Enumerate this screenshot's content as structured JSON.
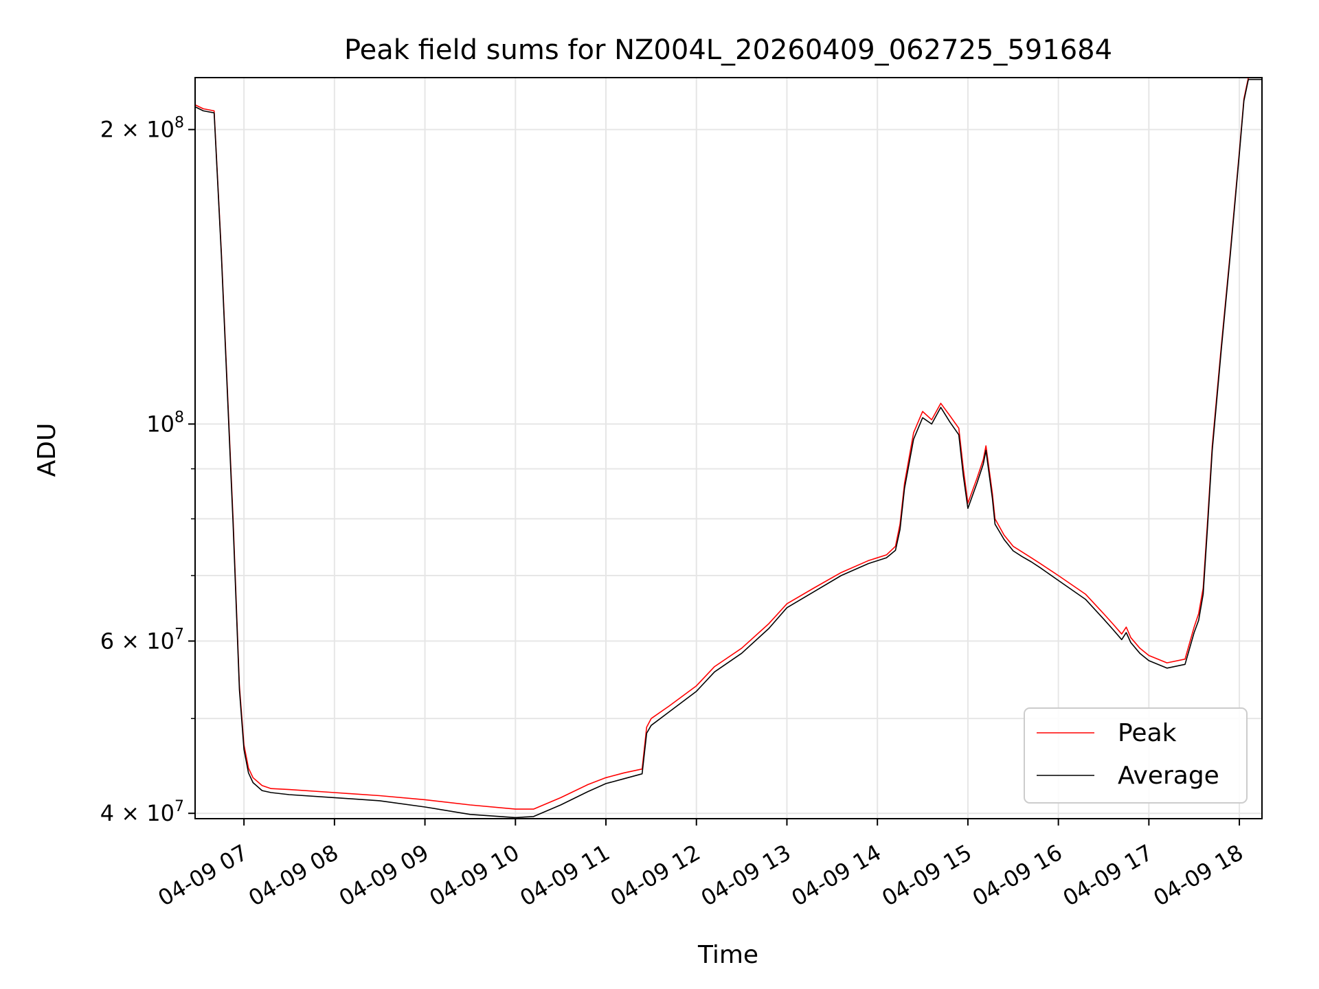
{
  "chart_data": {
    "type": "line",
    "title": "Peak field sums for NZ004L_20260409_062725_591684",
    "xlabel": "Time",
    "ylabel": "ADU",
    "yscale": "log",
    "ylim": [
      39500000,
      226000000
    ],
    "xlim_hours": [
      6.46,
      18.25
    ],
    "grid": true,
    "legend_position": "lower-right",
    "x_tick_labels": [
      "04-09 07",
      "04-09 08",
      "04-09 09",
      "04-09 10",
      "04-09 11",
      "04-09 12",
      "04-09 13",
      "04-09 14",
      "04-09 15",
      "04-09 16",
      "04-09 17",
      "04-09 18"
    ],
    "x_tick_hours": [
      7,
      8,
      9,
      10,
      11,
      12,
      13,
      14,
      15,
      16,
      17,
      18
    ],
    "y_major_ticks": [
      {
        "value": 40000000,
        "mantissa": "4",
        "exponent": "7"
      },
      {
        "value": 60000000,
        "mantissa": "6",
        "exponent": "7"
      },
      {
        "value": 100000000,
        "mantissa": "",
        "exponent": "8"
      },
      {
        "value": 200000000,
        "mantissa": "2",
        "exponent": "8"
      }
    ],
    "y_minor_ticks": [
      50000000,
      70000000,
      80000000,
      90000000
    ],
    "series": [
      {
        "name": "Peak",
        "color": "#ff0000",
        "x": [
          6.46,
          6.55,
          6.67,
          6.75,
          6.88,
          6.95,
          7.0,
          7.05,
          7.1,
          7.2,
          7.3,
          7.5,
          8.0,
          8.5,
          9.0,
          9.5,
          10.0,
          10.2,
          10.5,
          10.8,
          11.0,
          11.2,
          11.4,
          11.45,
          11.5,
          11.7,
          12.0,
          12.2,
          12.5,
          12.8,
          13.0,
          13.3,
          13.6,
          13.9,
          14.1,
          14.2,
          14.25,
          14.3,
          14.4,
          14.5,
          14.6,
          14.7,
          14.8,
          14.9,
          14.95,
          15.0,
          15.1,
          15.17,
          15.2,
          15.27,
          15.3,
          15.4,
          15.5,
          15.6,
          15.7,
          15.8,
          16.0,
          16.3,
          16.5,
          16.6,
          16.7,
          16.75,
          16.8,
          16.9,
          17.0,
          17.2,
          17.4,
          17.5,
          17.55,
          17.6,
          17.65,
          17.7,
          17.8,
          17.9,
          18.0,
          18.05,
          18.1,
          18.25
        ],
        "y": [
          212000000,
          210000000,
          209000000,
          150000000,
          80000000,
          54000000,
          47000000,
          44500000,
          43500000,
          42700000,
          42400000,
          42300000,
          42000000,
          41700000,
          41300000,
          40800000,
          40400000,
          40400000,
          41500000,
          42800000,
          43500000,
          44000000,
          44400000,
          49000000,
          50000000,
          51500000,
          54000000,
          56500000,
          59000000,
          62500000,
          65500000,
          68000000,
          70500000,
          72500000,
          73500000,
          75000000,
          79000000,
          87000000,
          98000000,
          103000000,
          101000000,
          105000000,
          102000000,
          99000000,
          90000000,
          83000000,
          88000000,
          92000000,
          95000000,
          85000000,
          80000000,
          77000000,
          75000000,
          74000000,
          73000000,
          72000000,
          70000000,
          67000000,
          64000000,
          62500000,
          61000000,
          62000000,
          60500000,
          59000000,
          58000000,
          57000000,
          57500000,
          62000000,
          64000000,
          68000000,
          80000000,
          95000000,
          120000000,
          150000000,
          190000000,
          215000000,
          226000000,
          226000000
        ]
      },
      {
        "name": "Average",
        "color": "#000000",
        "x": [
          6.46,
          6.55,
          6.67,
          6.75,
          6.88,
          6.95,
          7.0,
          7.05,
          7.1,
          7.2,
          7.3,
          7.5,
          8.0,
          8.5,
          9.0,
          9.5,
          10.0,
          10.2,
          10.5,
          10.8,
          11.0,
          11.2,
          11.4,
          11.45,
          11.5,
          11.7,
          12.0,
          12.2,
          12.5,
          12.8,
          13.0,
          13.3,
          13.6,
          13.9,
          14.1,
          14.2,
          14.25,
          14.3,
          14.4,
          14.5,
          14.6,
          14.7,
          14.8,
          14.9,
          14.95,
          15.0,
          15.1,
          15.17,
          15.2,
          15.27,
          15.3,
          15.4,
          15.5,
          15.6,
          15.7,
          15.8,
          16.0,
          16.3,
          16.5,
          16.6,
          16.7,
          16.75,
          16.8,
          16.9,
          17.0,
          17.2,
          17.4,
          17.5,
          17.55,
          17.6,
          17.65,
          17.7,
          17.8,
          17.9,
          18.0,
          18.05,
          18.1,
          18.25
        ],
        "y": [
          211000000,
          209000000,
          208000000,
          149000000,
          79000000,
          53500000,
          46500000,
          44000000,
          43000000,
          42200000,
          42000000,
          41800000,
          41500000,
          41200000,
          40600000,
          39900000,
          39600000,
          39700000,
          40800000,
          42100000,
          42900000,
          43400000,
          43900000,
          48300000,
          49200000,
          50800000,
          53300000,
          55800000,
          58300000,
          61800000,
          64900000,
          67400000,
          70000000,
          72000000,
          73000000,
          74300000,
          78000000,
          86000000,
          96500000,
          101500000,
          100000000,
          104000000,
          100500000,
          97500000,
          88500000,
          82000000,
          87000000,
          91000000,
          94000000,
          84000000,
          79000000,
          76200000,
          74200000,
          73200000,
          72300000,
          71300000,
          69200000,
          66200000,
          63200000,
          61700000,
          60200000,
          61200000,
          59800000,
          58300000,
          57300000,
          56300000,
          56800000,
          61200000,
          63000000,
          67000000,
          79000000,
          94000000,
          119000000,
          149000000,
          189000000,
          214000000,
          225000000,
          225000000
        ]
      }
    ]
  }
}
